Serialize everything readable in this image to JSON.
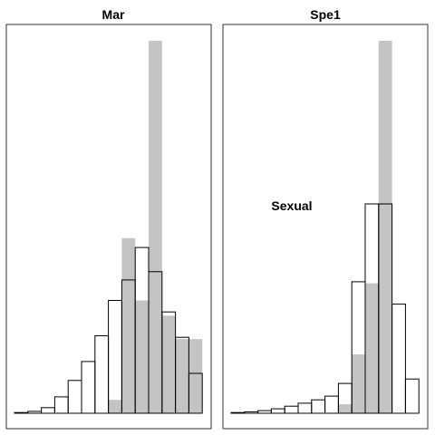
{
  "colors": {
    "background": "#ffffff",
    "series_a_fill": "#c4c4c4",
    "series_b_stroke": "#000000",
    "frame": "#333333"
  },
  "chart_data": [
    {
      "type": "bar",
      "title": "Mar",
      "xlabel": "",
      "ylabel": "",
      "bins": 14,
      "ylim": [
        0,
        1.0
      ],
      "grid": false,
      "legend": "none",
      "series": [
        {
          "style": "filled-gray",
          "values": [
            0,
            0,
            0,
            0,
            0,
            0,
            0,
            0.036,
            0.47,
            0.303,
            1.0,
            0.262,
            0.199,
            0.199
          ]
        },
        {
          "style": "outline",
          "values": [
            0.002,
            0.005,
            0.015,
            0.044,
            0.088,
            0.139,
            0.208,
            0.303,
            0.358,
            0.445,
            0.38,
            0.272,
            0.204,
            0.107
          ]
        }
      ],
      "annotations": []
    },
    {
      "type": "bar",
      "title": "Spe1",
      "xlabel": "",
      "ylabel": "",
      "bins": 14,
      "ylim": [
        0,
        1.0
      ],
      "grid": false,
      "legend": "none",
      "series": [
        {
          "style": "filled-gray",
          "values": [
            0,
            0,
            0,
            0,
            0,
            0,
            0,
            0,
            0.024,
            0.158,
            0.349,
            1.0,
            0,
            0
          ]
        },
        {
          "style": "outline",
          "values": [
            0.002,
            0.004,
            0.007,
            0.012,
            0.019,
            0.027,
            0.036,
            0.046,
            0.08,
            0.353,
            0.562,
            0.562,
            0.293,
            0.092
          ]
        }
      ],
      "annotations": [
        "Sexual"
      ]
    }
  ]
}
